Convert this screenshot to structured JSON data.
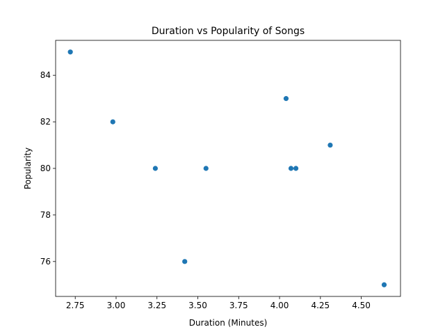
{
  "chart_data": {
    "type": "scatter",
    "title": "Duration vs Popularity of Songs",
    "xlabel": "Duration (Minutes)",
    "ylabel": "Popularity",
    "xlim": [
      2.63,
      4.74
    ],
    "ylim": [
      74.5,
      85.5
    ],
    "xticks": [
      "2.75",
      "3.00",
      "3.25",
      "3.50",
      "3.75",
      "4.00",
      "4.25",
      "4.50"
    ],
    "yticks": [
      "76",
      "78",
      "80",
      "82",
      "84"
    ],
    "grid": false,
    "point_color": "#1f77b4",
    "points": [
      {
        "x": 2.72,
        "y": 85
      },
      {
        "x": 2.98,
        "y": 82
      },
      {
        "x": 3.24,
        "y": 80
      },
      {
        "x": 3.42,
        "y": 76
      },
      {
        "x": 3.55,
        "y": 80
      },
      {
        "x": 4.04,
        "y": 83
      },
      {
        "x": 4.07,
        "y": 80
      },
      {
        "x": 4.1,
        "y": 80
      },
      {
        "x": 4.31,
        "y": 81
      },
      {
        "x": 4.64,
        "y": 75
      }
    ]
  }
}
